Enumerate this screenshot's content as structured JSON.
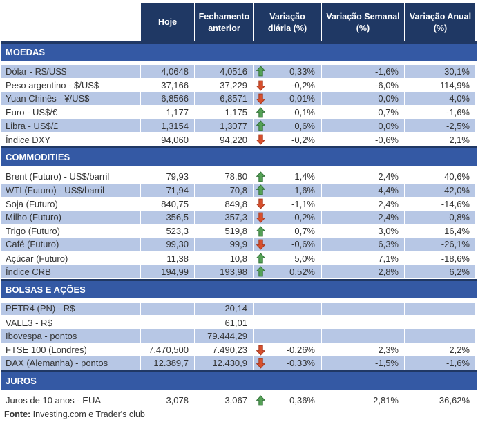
{
  "header": {
    "columns": [
      "Hoje",
      "Fechamento anterior",
      "Variação diária (%)",
      "Variação Semanal (%)",
      "Variação Anual (%)"
    ]
  },
  "sections": [
    {
      "title": "MOEDAS",
      "rows": [
        {
          "label": "Dólar - R$/US$",
          "hoje": "4,0648",
          "fechamento": "4,0516",
          "trend": "up",
          "var_diaria": "0,33%",
          "var_semanal": "-1,6%",
          "var_anual": "30,1%"
        },
        {
          "label": "Peso argentino - $/US$",
          "hoje": "37,166",
          "fechamento": "37,229",
          "trend": "down",
          "var_diaria": "-0,2%",
          "var_semanal": "-6,0%",
          "var_anual": "114,9%"
        },
        {
          "label": "Yuan Chinês - ¥/US$",
          "hoje": "6,8566",
          "fechamento": "6,8571",
          "trend": "down",
          "var_diaria": "-0,01%",
          "var_semanal": "0,0%",
          "var_anual": "4,0%"
        },
        {
          "label": "Euro - US$/€",
          "hoje": "1,177",
          "fechamento": "1,175",
          "trend": "up",
          "var_diaria": "0,1%",
          "var_semanal": "0,7%",
          "var_anual": "-1,6%"
        },
        {
          "label": "Libra - US$/£",
          "hoje": "1,3154",
          "fechamento": "1,3077",
          "trend": "up",
          "var_diaria": "0,6%",
          "var_semanal": "0,0%",
          "var_anual": "-2,5%"
        },
        {
          "label": "Índice DXY",
          "hoje": "94,060",
          "fechamento": "94,220",
          "trend": "down",
          "var_diaria": "-0,2%",
          "var_semanal": "-0,6%",
          "var_anual": "2,1%"
        }
      ]
    },
    {
      "title": "COMMODITIES",
      "rows": [
        {
          "label": "Brent (Futuro) - US$/barril",
          "hoje": "79,93",
          "fechamento": "78,80",
          "trend": "up",
          "var_diaria": "1,4%",
          "var_semanal": "2,4%",
          "var_anual": "40,6%"
        },
        {
          "label": "WTI (Futuro) - US$/barril",
          "hoje": "71,94",
          "fechamento": "70,8",
          "trend": "up",
          "var_diaria": "1,6%",
          "var_semanal": "4,4%",
          "var_anual": "42,0%"
        },
        {
          "label": "Soja (Futuro)",
          "hoje": "840,75",
          "fechamento": "849,8",
          "trend": "down",
          "var_diaria": "-1,1%",
          "var_semanal": "2,4%",
          "var_anual": "-14,6%"
        },
        {
          "label": "Milho (Futuro)",
          "hoje": "356,5",
          "fechamento": "357,3",
          "trend": "down",
          "var_diaria": "-0,2%",
          "var_semanal": "2,4%",
          "var_anual": "0,8%"
        },
        {
          "label": "Trigo (Futuro)",
          "hoje": "523,3",
          "fechamento": "519,8",
          "trend": "up",
          "var_diaria": "0,7%",
          "var_semanal": "3,0%",
          "var_anual": "16,4%"
        },
        {
          "label": "Café (Futuro)",
          "hoje": "99,30",
          "fechamento": "99,9",
          "trend": "down",
          "var_diaria": "-0,6%",
          "var_semanal": "6,3%",
          "var_anual": "-26,1%"
        },
        {
          "label": "Açúcar (Futuro)",
          "hoje": "11,38",
          "fechamento": "10,8",
          "trend": "up",
          "var_diaria": "5,0%",
          "var_semanal": "7,1%",
          "var_anual": "-18,6%"
        },
        {
          "label": "Índice CRB",
          "hoje": "194,99",
          "fechamento": "193,98",
          "trend": "up",
          "var_diaria": "0,52%",
          "var_semanal": "2,8%",
          "var_anual": "6,2%"
        }
      ]
    },
    {
      "title": "BOLSAS E AÇÕES",
      "rows": [
        {
          "label": "PETR4 (PN) - R$",
          "hoje": "",
          "fechamento": "20,14",
          "trend": null,
          "var_diaria": "",
          "var_semanal": "",
          "var_anual": ""
        },
        {
          "label": "VALE3 - R$",
          "hoje": "",
          "fechamento": "61,01",
          "trend": null,
          "var_diaria": "",
          "var_semanal": "",
          "var_anual": ""
        },
        {
          "label": "Ibovespa - pontos",
          "hoje": "",
          "fechamento": "79.444,29",
          "trend": null,
          "var_diaria": "",
          "var_semanal": "",
          "var_anual": ""
        },
        {
          "label": "FTSE 100 (Londres)",
          "hoje": "7.470,500",
          "fechamento": "7.490,23",
          "trend": "down",
          "var_diaria": "-0,26%",
          "var_semanal": "2,3%",
          "var_anual": "2,2%"
        },
        {
          "label": "DAX (Alemanha) - pontos",
          "hoje": "12.389,7",
          "fechamento": "12.430,9",
          "trend": "down",
          "var_diaria": "-0,33%",
          "var_semanal": "-1,5%",
          "var_anual": "-1,6%"
        }
      ]
    },
    {
      "title": "JUROS",
      "rows": [
        {
          "label": "Juros de 10 anos - EUA",
          "hoje": "3,078",
          "fechamento": "3,067",
          "trend": "up",
          "var_diaria": "0,36%",
          "var_semanal": "2,81%",
          "var_anual": "36,62%"
        }
      ]
    }
  ],
  "footer": {
    "fonte_label": "Fonte:",
    "fonte_text": " Investing.com e Trader's club"
  },
  "colors": {
    "header_bg": "#1F3864",
    "section_bg": "#3459A4",
    "section_border": "#203864",
    "row_shaded": "#B7C7E5",
    "trend_up": "#55A256",
    "trend_down": "#D8502D",
    "text": "#333333"
  },
  "icons": {
    "up": "trend-up-arrow-icon",
    "down": "trend-down-arrow-icon"
  }
}
